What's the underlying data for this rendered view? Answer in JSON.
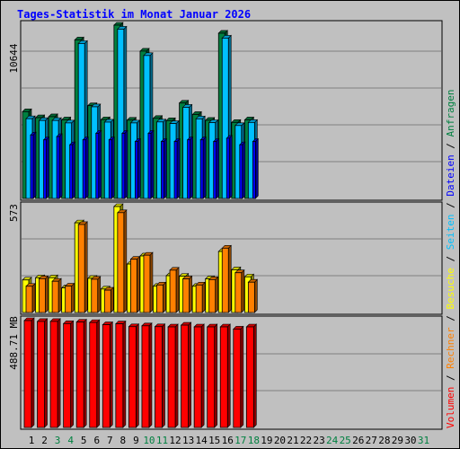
{
  "title": "Tages-Statistik im Monat Januar 2026",
  "colors": {
    "background": "#c0c0c0",
    "title": "#0000ff",
    "anfragen": "#008040",
    "dateien": "#0000ff",
    "seiten": "#00c0ff",
    "besuche": "#ffff00",
    "rechner": "#ff8000",
    "volumen": "#ff0000",
    "weekend": "#008040",
    "separator": "#000000"
  },
  "legend": [
    {
      "label": "Volumen",
      "color": "#ff0000"
    },
    {
      "label": "Rechner",
      "color": "#ff8000"
    },
    {
      "label": "Besuche",
      "color": "#ffff00"
    },
    {
      "label": "Seiten",
      "color": "#00c0ff"
    },
    {
      "label": "Dateien",
      "color": "#0000ff"
    },
    {
      "label": "Anfragen",
      "color": "#008040"
    }
  ],
  "legend_separator": " / ",
  "chart_data": [
    {
      "type": "bar",
      "panel": "top",
      "ylabel": "10644",
      "ylim": [
        0,
        10644
      ],
      "x": [
        1,
        2,
        3,
        4,
        5,
        6,
        7,
        8,
        9,
        10,
        11,
        12,
        13,
        14,
        15,
        16,
        17,
        18
      ],
      "series": [
        {
          "name": "Anfragen",
          "values": [
            5330,
            4960,
            5020,
            4830,
            9740,
            5700,
            4840,
            10644,
            4810,
            9050,
            4920,
            4780,
            5860,
            5160,
            4800,
            10150,
            4670,
            4830
          ]
        },
        {
          "name": "Seiten",
          "values": [
            4900,
            4790,
            4790,
            4640,
            9520,
            5630,
            4690,
            10400,
            4640,
            8780,
            4700,
            4600,
            5600,
            4890,
            4660,
            9850,
            4480,
            4670
          ]
        },
        {
          "name": "Dateien",
          "values": [
            3900,
            3600,
            3800,
            3300,
            3600,
            4000,
            3600,
            4000,
            3500,
            4000,
            3500,
            3500,
            3600,
            3600,
            3500,
            3700,
            3300,
            3500
          ]
        }
      ]
    },
    {
      "type": "bar",
      "panel": "middle",
      "ylabel": "573",
      "ylim": [
        0,
        573
      ],
      "x": [
        1,
        2,
        3,
        4,
        5,
        6,
        7,
        8,
        9,
        10,
        11,
        12,
        13,
        14,
        15,
        16,
        17,
        18
      ],
      "series": [
        {
          "name": "Besuche",
          "values": [
            176,
            188,
            188,
            133,
            485,
            185,
            127,
            573,
            262,
            306,
            142,
            199,
            196,
            142,
            182,
            330,
            231,
            193
          ]
        },
        {
          "name": "Rechner",
          "values": [
            142,
            183,
            169,
            143,
            476,
            180,
            121,
            540,
            288,
            310,
            149,
            229,
            182,
            149,
            178,
            348,
            215,
            164
          ]
        }
      ]
    },
    {
      "type": "bar",
      "panel": "bottom",
      "ylabel": "488.71 MB",
      "ylim": [
        0,
        488.71
      ],
      "x": [
        1,
        2,
        3,
        4,
        5,
        6,
        7,
        8,
        9,
        10,
        11,
        12,
        13,
        14,
        15,
        16,
        17,
        18
      ],
      "series": [
        {
          "name": "Volumen",
          "values": [
            488.71,
            485,
            485,
            475,
            482,
            480,
            470,
            474,
            461,
            465,
            461,
            460,
            468,
            460,
            460,
            460,
            450,
            460
          ]
        }
      ]
    }
  ],
  "days": [
    {
      "label": "1",
      "weekend": false
    },
    {
      "label": "2",
      "weekend": false
    },
    {
      "label": "3",
      "weekend": true
    },
    {
      "label": "4",
      "weekend": true
    },
    {
      "label": "5",
      "weekend": false
    },
    {
      "label": "6",
      "weekend": false
    },
    {
      "label": "7",
      "weekend": false
    },
    {
      "label": "8",
      "weekend": false
    },
    {
      "label": "9",
      "weekend": false
    },
    {
      "label": "10",
      "weekend": true
    },
    {
      "label": "11",
      "weekend": true
    },
    {
      "label": "12",
      "weekend": false
    },
    {
      "label": "13",
      "weekend": false
    },
    {
      "label": "14",
      "weekend": false
    },
    {
      "label": "15",
      "weekend": false
    },
    {
      "label": "16",
      "weekend": false
    },
    {
      "label": "17",
      "weekend": true
    },
    {
      "label": "18",
      "weekend": true
    },
    {
      "label": "19",
      "weekend": false
    },
    {
      "label": "20",
      "weekend": false
    },
    {
      "label": "21",
      "weekend": false
    },
    {
      "label": "22",
      "weekend": false
    },
    {
      "label": "23",
      "weekend": false
    },
    {
      "label": "24",
      "weekend": true
    },
    {
      "label": "25",
      "weekend": true
    },
    {
      "label": "26",
      "weekend": false
    },
    {
      "label": "27",
      "weekend": false
    },
    {
      "label": "28",
      "weekend": false
    },
    {
      "label": "29",
      "weekend": false
    },
    {
      "label": "30",
      "weekend": false
    },
    {
      "label": "31",
      "weekend": true
    }
  ]
}
